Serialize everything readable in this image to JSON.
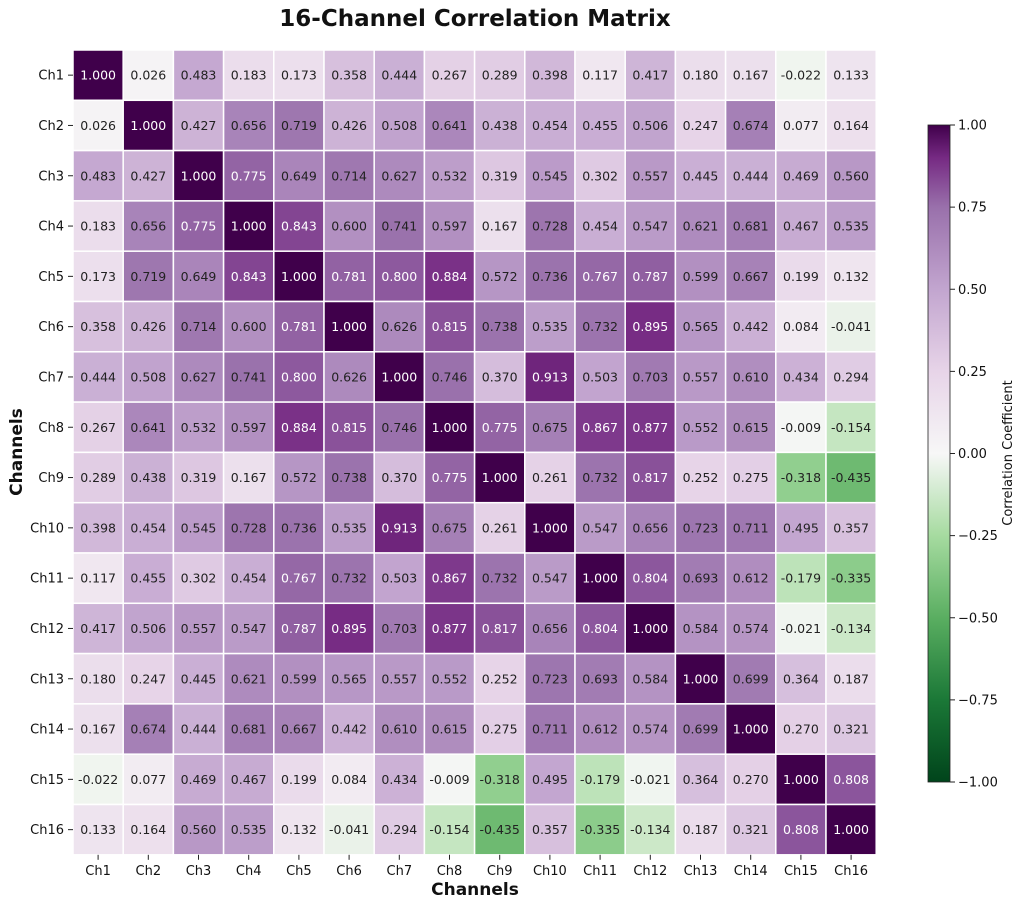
{
  "chart_data": {
    "type": "heatmap",
    "title": "16-Channel Correlation Matrix",
    "xlabel": "Channels",
    "ylabel": "Channels",
    "x_categories": [
      "Ch1",
      "Ch2",
      "Ch3",
      "Ch4",
      "Ch5",
      "Ch6",
      "Ch7",
      "Ch8",
      "Ch9",
      "Ch10",
      "Ch11",
      "Ch12",
      "Ch13",
      "Ch14",
      "Ch15",
      "Ch16"
    ],
    "y_categories": [
      "Ch1",
      "Ch2",
      "Ch3",
      "Ch4",
      "Ch5",
      "Ch6",
      "Ch7",
      "Ch8",
      "Ch9",
      "Ch10",
      "Ch11",
      "Ch12",
      "Ch13",
      "Ch14",
      "Ch15",
      "Ch16"
    ],
    "values": [
      [
        1.0,
        0.026,
        0.483,
        0.183,
        0.173,
        0.358,
        0.444,
        0.267,
        0.289,
        0.398,
        0.117,
        0.417,
        0.18,
        0.167,
        -0.022,
        0.133
      ],
      [
        0.026,
        1.0,
        0.427,
        0.656,
        0.719,
        0.426,
        0.508,
        0.641,
        0.438,
        0.454,
        0.455,
        0.506,
        0.247,
        0.674,
        0.077,
        0.164
      ],
      [
        0.483,
        0.427,
        1.0,
        0.775,
        0.649,
        0.714,
        0.627,
        0.532,
        0.319,
        0.545,
        0.302,
        0.557,
        0.445,
        0.444,
        0.469,
        0.56
      ],
      [
        0.183,
        0.656,
        0.775,
        1.0,
        0.843,
        0.6,
        0.741,
        0.597,
        0.167,
        0.728,
        0.454,
        0.547,
        0.621,
        0.681,
        0.467,
        0.535
      ],
      [
        0.173,
        0.719,
        0.649,
        0.843,
        1.0,
        0.781,
        0.8,
        0.884,
        0.572,
        0.736,
        0.767,
        0.787,
        0.599,
        0.667,
        0.199,
        0.132
      ],
      [
        0.358,
        0.426,
        0.714,
        0.6,
        0.781,
        1.0,
        0.626,
        0.815,
        0.738,
        0.535,
        0.732,
        0.895,
        0.565,
        0.442,
        0.084,
        -0.041
      ],
      [
        0.444,
        0.508,
        0.627,
        0.741,
        0.8,
        0.626,
        1.0,
        0.746,
        0.37,
        0.913,
        0.503,
        0.703,
        0.557,
        0.61,
        0.434,
        0.294
      ],
      [
        0.267,
        0.641,
        0.532,
        0.597,
        0.884,
        0.815,
        0.746,
        1.0,
        0.775,
        0.675,
        0.867,
        0.877,
        0.552,
        0.615,
        -0.009,
        -0.154
      ],
      [
        0.289,
        0.438,
        0.319,
        0.167,
        0.572,
        0.738,
        0.37,
        0.775,
        1.0,
        0.261,
        0.732,
        0.817,
        0.252,
        0.275,
        -0.318,
        -0.435
      ],
      [
        0.398,
        0.454,
        0.545,
        0.728,
        0.736,
        0.535,
        0.913,
        0.675,
        0.261,
        1.0,
        0.547,
        0.656,
        0.723,
        0.711,
        0.495,
        0.357
      ],
      [
        0.117,
        0.455,
        0.302,
        0.454,
        0.767,
        0.732,
        0.503,
        0.867,
        0.732,
        0.547,
        1.0,
        0.804,
        0.693,
        0.612,
        -0.179,
        -0.335
      ],
      [
        0.417,
        0.506,
        0.557,
        0.547,
        0.787,
        0.895,
        0.703,
        0.877,
        0.817,
        0.656,
        0.804,
        1.0,
        0.584,
        0.574,
        -0.021,
        -0.134
      ],
      [
        0.18,
        0.247,
        0.445,
        0.621,
        0.599,
        0.565,
        0.557,
        0.552,
        0.252,
        0.723,
        0.693,
        0.584,
        1.0,
        0.699,
        0.364,
        0.187
      ],
      [
        0.167,
        0.674,
        0.444,
        0.681,
        0.667,
        0.442,
        0.61,
        0.615,
        0.275,
        0.711,
        0.612,
        0.574,
        0.699,
        1.0,
        0.27,
        0.321
      ],
      [
        -0.022,
        0.077,
        0.469,
        0.467,
        0.199,
        0.084,
        0.434,
        -0.009,
        -0.318,
        0.495,
        -0.179,
        -0.021,
        0.364,
        0.27,
        1.0,
        0.808
      ],
      [
        0.133,
        0.164,
        0.56,
        0.535,
        0.132,
        -0.041,
        0.294,
        -0.154,
        -0.435,
        0.357,
        -0.335,
        -0.134,
        0.187,
        0.321,
        0.808,
        1.0
      ]
    ],
    "value_format_decimals": 3,
    "colorbar": {
      "label": "Correlation Coefficient",
      "range": [
        -1.0,
        1.0
      ],
      "ticks": [
        1.0,
        0.75,
        0.5,
        0.25,
        0.0,
        -0.25,
        -0.5,
        -0.75,
        -1.0
      ],
      "tick_labels": [
        "1.00",
        "0.75",
        "0.50",
        "0.25",
        "0.00",
        "−0.25",
        "−0.50",
        "−0.75",
        "−1.00"
      ],
      "colormap": "PRGn_reversed",
      "stops": [
        {
          "v": -1.0,
          "color": "#00441b"
        },
        {
          "v": -0.75,
          "color": "#1b7837"
        },
        {
          "v": -0.5,
          "color": "#5aae61"
        },
        {
          "v": -0.25,
          "color": "#a6dba0"
        },
        {
          "v": 0.0,
          "color": "#f7f7f7"
        },
        {
          "v": 0.25,
          "color": "#e7d4e8"
        },
        {
          "v": 0.5,
          "color": "#c2a5cf"
        },
        {
          "v": 0.75,
          "color": "#9970ab"
        },
        {
          "v": 0.9,
          "color": "#762a83"
        },
        {
          "v": 1.0,
          "color": "#40004b"
        }
      ]
    },
    "grid_lines": true,
    "grid_line_color": "#ffffff"
  }
}
